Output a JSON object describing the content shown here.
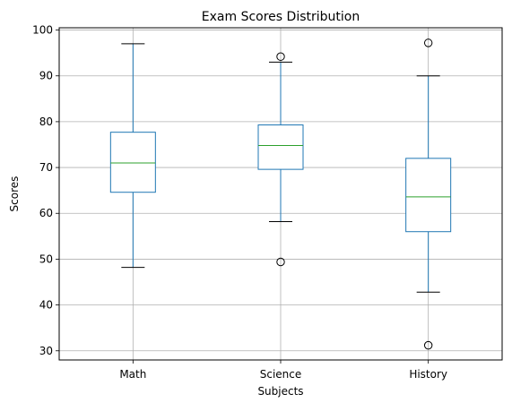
{
  "chart_data": {
    "type": "box",
    "title": "Exam Scores Distribution",
    "xlabel": "Subjects",
    "ylabel": "Scores",
    "ylim": [
      28.0,
      100.5
    ],
    "yticks": [
      30,
      40,
      50,
      60,
      70,
      80,
      90,
      100
    ],
    "grid": true,
    "categories": [
      "Math",
      "Science",
      "History"
    ],
    "boxes": [
      {
        "category": "Math",
        "whisker_low": 48.2,
        "q1": 64.6,
        "median": 71.0,
        "q3": 77.7,
        "whisker_high": 97.0,
        "outliers": []
      },
      {
        "category": "Science",
        "whisker_low": 58.2,
        "q1": 69.6,
        "median": 74.8,
        "q3": 79.3,
        "whisker_high": 93.0,
        "outliers": [
          94.2,
          49.4
        ]
      },
      {
        "category": "History",
        "whisker_low": 42.8,
        "q1": 56.0,
        "median": 63.6,
        "q3": 72.0,
        "whisker_high": 90.0,
        "outliers": [
          97.2,
          31.2
        ]
      }
    ],
    "colors": {
      "box": "#1f77b4",
      "median": "#2ca02c",
      "whisker": "#1f77b4",
      "cap": "#000000",
      "outlier": "#000000",
      "grid": "#b0b0b0"
    }
  }
}
